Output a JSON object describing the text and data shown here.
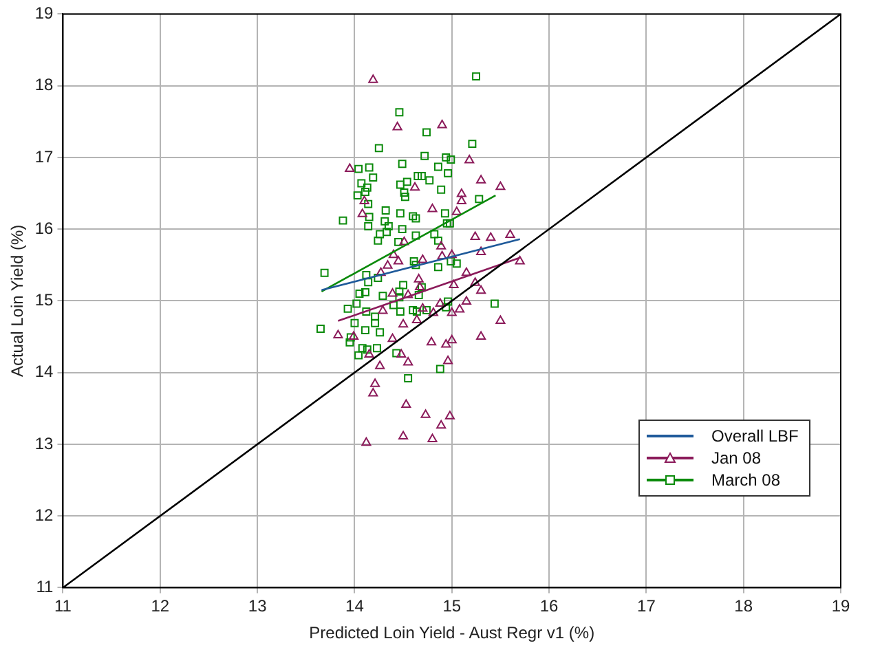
{
  "chart_data": {
    "type": "scatter",
    "xlabel": "Predicted Loin Yield - Aust Regr v1 (%)",
    "ylabel": "Actual Loin Yield (%)",
    "xlim": [
      11,
      19
    ],
    "ylim": [
      11,
      19
    ],
    "xticks": [
      11,
      12,
      13,
      14,
      15,
      16,
      17,
      18,
      19
    ],
    "yticks": [
      11,
      12,
      13,
      14,
      15,
      16,
      17,
      18,
      19
    ],
    "grid": true,
    "legend": "bottom right",
    "series": [
      {
        "type": "line",
        "color": "#000000",
        "marker": "none",
        "x": [
          11,
          19
        ],
        "values": [
          11,
          19
        ]
      },
      {
        "name": "Overall LBF",
        "type": "line",
        "color": "#1f5a9a",
        "marker": "none",
        "x": [
          13.66,
          15.7
        ],
        "values": [
          15.15,
          15.86
        ]
      },
      {
        "type": "line",
        "color": "#8b1a5a",
        "marker": "none",
        "x": [
          13.83,
          15.7
        ],
        "values": [
          14.72,
          15.6
        ]
      },
      {
        "type": "line",
        "color": "#0a8a0a",
        "marker": "none",
        "x": [
          13.66,
          15.45
        ],
        "values": [
          15.13,
          16.47
        ]
      },
      {
        "name": "Jan 08",
        "type": "scatter",
        "color": "#8b1a5a",
        "marker": "triangle",
        "x": [
          14.19,
          14.44,
          14.9,
          15.18,
          13.95,
          15.3,
          15.5,
          14.62,
          15.1,
          15.1,
          14.1,
          14.8,
          15.05,
          14.08,
          15.24,
          15.4,
          15.6,
          14.89,
          14.51,
          14.4,
          14.45,
          14.7,
          14.9,
          15.0,
          15.3,
          15.7,
          14.34,
          14.27,
          15.15,
          14.66,
          15.02,
          15.24,
          15.3,
          14.67,
          14.39,
          14.55,
          14.88,
          15.15,
          14.29,
          14.7,
          14.81,
          15.0,
          15.08,
          14.64,
          14.5,
          15.5,
          13.83,
          13.99,
          14.39,
          14.79,
          14.94,
          15.0,
          15.3,
          14.15,
          14.48,
          14.55,
          14.96,
          14.26,
          14.21,
          14.19,
          14.53,
          14.73,
          14.98,
          14.89,
          14.5,
          14.8,
          14.12
        ],
        "values": [
          18.08,
          17.42,
          17.45,
          16.96,
          16.84,
          16.68,
          16.59,
          16.58,
          16.49,
          16.39,
          16.39,
          16.28,
          16.24,
          16.21,
          15.89,
          15.88,
          15.92,
          15.76,
          15.82,
          15.64,
          15.55,
          15.57,
          15.62,
          15.64,
          15.68,
          15.55,
          15.49,
          15.39,
          15.39,
          15.3,
          15.22,
          15.25,
          15.14,
          15.19,
          15.1,
          15.08,
          14.96,
          14.99,
          14.86,
          14.89,
          14.83,
          14.83,
          14.88,
          14.73,
          14.67,
          14.72,
          14.52,
          14.5,
          14.47,
          14.42,
          14.39,
          14.45,
          14.5,
          14.25,
          14.25,
          14.14,
          14.16,
          14.09,
          13.84,
          13.71,
          13.55,
          13.41,
          13.39,
          13.26,
          13.11,
          13.07,
          13.02
        ]
      },
      {
        "name": "March 08",
        "type": "scatter",
        "color": "#0a8a0a",
        "marker": "square",
        "x": [
          15.25,
          14.46,
          14.74,
          15.21,
          14.25,
          14.72,
          14.94,
          14.99,
          14.49,
          14.86,
          14.04,
          14.15,
          14.96,
          14.19,
          14.65,
          14.69,
          14.77,
          14.54,
          14.07,
          14.47,
          14.13,
          14.11,
          14.51,
          14.89,
          14.03,
          14.52,
          15.28,
          14.14,
          14.32,
          14.47,
          14.93,
          14.6,
          14.63,
          13.88,
          14.15,
          14.31,
          14.95,
          14.98,
          14.14,
          14.35,
          14.49,
          14.26,
          14.33,
          14.63,
          14.82,
          14.24,
          14.45,
          14.86,
          13.69,
          14.12,
          14.24,
          14.14,
          14.61,
          14.63,
          14.86,
          14.99,
          15.05,
          14.5,
          14.11,
          14.05,
          14.29,
          14.46,
          14.46,
          14.66,
          14.69,
          14.02,
          13.93,
          14.12,
          14.4,
          14.47,
          14.6,
          14.64,
          14.74,
          14.94,
          14.96,
          15.44,
          14.21,
          14.0,
          14.21,
          13.65,
          14.11,
          14.26,
          13.96,
          13.95,
          14.08,
          14.13,
          14.23,
          14.04,
          14.43,
          14.88,
          14.55
        ],
        "values": [
          18.13,
          17.63,
          17.35,
          17.19,
          17.13,
          17.02,
          17.0,
          16.97,
          16.91,
          16.87,
          16.84,
          16.86,
          16.78,
          16.72,
          16.74,
          16.74,
          16.68,
          16.66,
          16.64,
          16.62,
          16.58,
          16.52,
          16.51,
          16.55,
          16.47,
          16.45,
          16.42,
          16.35,
          16.26,
          16.22,
          16.22,
          16.18,
          16.15,
          16.12,
          16.17,
          16.11,
          16.08,
          16.08,
          16.04,
          16.04,
          16.0,
          15.93,
          15.96,
          15.91,
          15.93,
          15.84,
          15.82,
          15.84,
          15.39,
          15.36,
          15.32,
          15.26,
          15.55,
          15.5,
          15.47,
          15.55,
          15.52,
          15.22,
          15.12,
          15.1,
          15.07,
          15.13,
          15.05,
          15.08,
          15.19,
          14.96,
          14.89,
          14.85,
          14.94,
          14.85,
          14.87,
          14.85,
          14.87,
          14.91,
          14.99,
          14.96,
          14.78,
          14.69,
          14.69,
          14.61,
          14.59,
          14.56,
          14.49,
          14.42,
          14.34,
          14.32,
          14.34,
          14.24,
          14.27,
          14.05,
          13.92
        ]
      }
    ]
  }
}
